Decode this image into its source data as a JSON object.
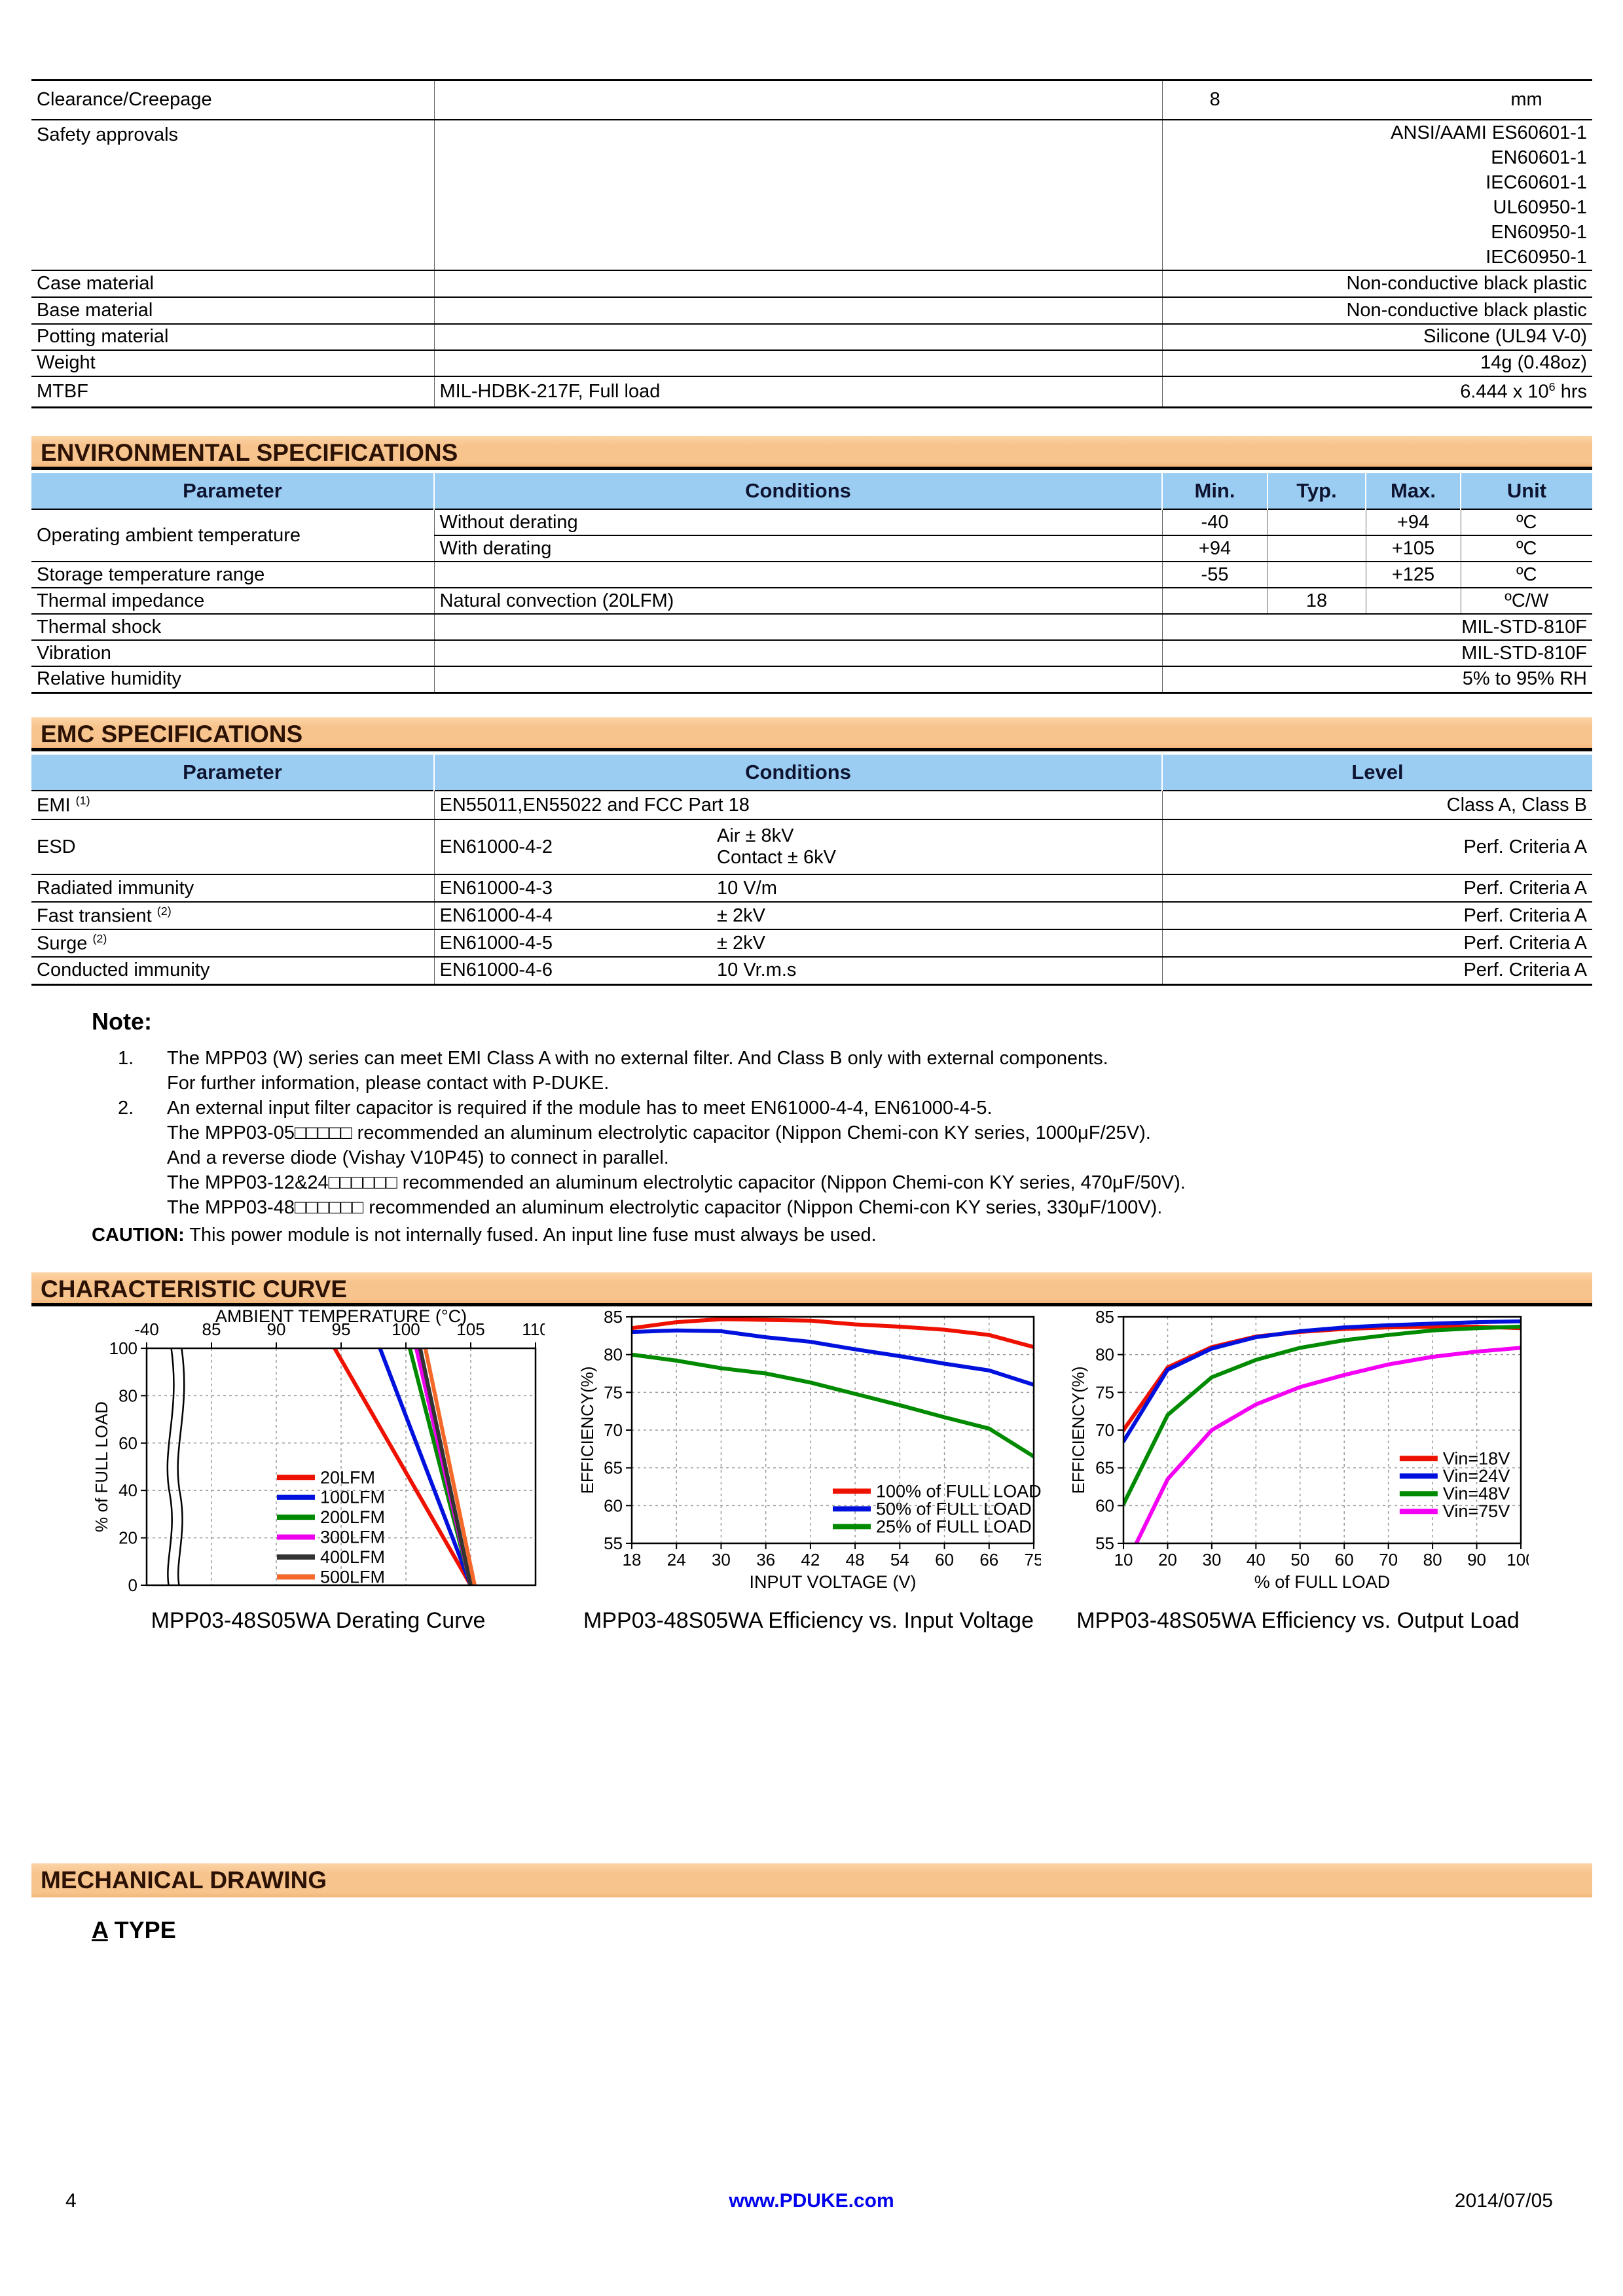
{
  "colors": {
    "banner_bg": "#F8C48E",
    "banner_text": "#2B1205",
    "header_bg": "#9BCDF3",
    "header_text": "#0E1430",
    "footer_link": "#0000EE"
  },
  "top_table": {
    "rows": [
      {
        "param": "Clearance/Creepage",
        "cond": "",
        "min": "8",
        "unit": "mm"
      },
      {
        "param": "Safety approvals",
        "values": [
          "ANSI/AAMI ES60601-1",
          "EN60601-1",
          "IEC60601-1",
          "UL60950-1",
          "EN60950-1",
          "IEC60950-1"
        ]
      },
      {
        "param": "Case material",
        "value": "Non-conductive black plastic"
      },
      {
        "param": "Base material",
        "value": "Non-conductive black plastic"
      },
      {
        "param": "Potting material",
        "value": "Silicone (UL94 V-0)"
      },
      {
        "param": "Weight",
        "value": "14g (0.48oz)"
      },
      {
        "param": "MTBF",
        "cond": "MIL-HDBK-217F, Full load",
        "value_main": "6.444 x 10",
        "value_sup": "6",
        "value_suffix": " hrs"
      }
    ]
  },
  "env": {
    "title": "ENVIRONMENTAL SPECIFICATIONS",
    "headers": [
      "Parameter",
      "Conditions",
      "Min.",
      "Typ.",
      "Max.",
      "Unit"
    ],
    "rows": [
      {
        "param": "Operating ambient temperature",
        "cond": "Without derating",
        "min": "-40",
        "typ": "",
        "max": "+94",
        "unit": "ºC"
      },
      {
        "cond": "With derating",
        "min": "+94",
        "typ": "",
        "max": "+105",
        "unit": "ºC"
      },
      {
        "param": "Storage temperature range",
        "cond": "",
        "min": "-55",
        "typ": "",
        "max": "+125",
        "unit": "ºC"
      },
      {
        "param": "Thermal impedance",
        "cond": "Natural convection (20LFM)",
        "min": "",
        "typ": "18",
        "max": "",
        "unit": "ºC/W"
      },
      {
        "param": "Thermal shock",
        "span_value": "MIL-STD-810F"
      },
      {
        "param": "Vibration",
        "span_value": "MIL-STD-810F"
      },
      {
        "param": "Relative humidity",
        "span_value": "5% to 95% RH"
      }
    ]
  },
  "emc": {
    "title": "EMC SPECIFICATIONS",
    "headers": [
      "Parameter",
      "Conditions",
      "Level"
    ],
    "rows": [
      {
        "param": "EMI",
        "sup": "(1)",
        "std": "EN55011,EN55022 and FCC Part 18",
        "val": "",
        "level": "Class A, Class B"
      },
      {
        "param": "ESD",
        "sup": "",
        "std": "EN61000-4-2",
        "val_lines": [
          "Air ± 8kV",
          "Contact ± 6kV"
        ],
        "level": "Perf. Criteria A"
      },
      {
        "param": "Radiated immunity",
        "sup": "",
        "std": "EN61000-4-3",
        "val": "10 V/m",
        "level": "Perf. Criteria A"
      },
      {
        "param": "Fast transient",
        "sup": "(2)",
        "std": "EN61000-4-4",
        "val": "± 2kV",
        "level": "Perf. Criteria A"
      },
      {
        "param": "Surge",
        "sup": "(2)",
        "std": "EN61000-4-5",
        "val": "± 2kV",
        "level": "Perf. Criteria A"
      },
      {
        "param": "Conducted immunity",
        "sup": "",
        "std": "EN61000-4-6",
        "val": "10 Vr.m.s",
        "level": "Perf. Criteria A"
      }
    ]
  },
  "note": {
    "heading": "Note:",
    "items": [
      {
        "num": "1.",
        "lines": [
          "The MPP03 (W) series can meet EMI Class A with no external filter. And Class B only with external components.",
          "For further information, please contact with P-DUKE."
        ]
      },
      {
        "num": "2.",
        "lines": [
          "An external input filter capacitor is required if the module has to meet EN61000-4-4, EN61000-4-5.",
          "The MPP03-05□□□□□ recommended an aluminum electrolytic capacitor (Nippon Chemi-con KY series, 1000μF/25V).",
          "And a reverse diode (Vishay V10P45) to connect in parallel.",
          "The MPP03-12&24□□□□□□ recommended an aluminum electrolytic capacitor (Nippon Chemi-con KY series, 470μF/50V).",
          "The MPP03-48□□□□□□ recommended an aluminum electrolytic capacitor (Nippon Chemi-con KY series, 330μF/100V)."
        ]
      }
    ],
    "caution_label": "CAUTION:",
    "caution_text": " This power module is not internally fused. An input line fuse must always be used."
  },
  "curve_section": {
    "title": "CHARACTERISTIC CURVE"
  },
  "mech": {
    "title": "MECHANICAL DRAWING",
    "type_letter": "A",
    "type_rest": " TYPE"
  },
  "footer": {
    "page": "4",
    "site": "www.PDUKE.com",
    "date": "2014/07/05"
  },
  "chart_data": [
    {
      "type": "line",
      "title": "MPP03-48S05WA Derating Curve",
      "xlabel": "AMBIENT TEMPERATURE (°C)",
      "ylabel": "% of FULL LOAD",
      "x_axis_side": "top",
      "x_ticks": [
        -40,
        85,
        90,
        95,
        100,
        105,
        110
      ],
      "x_break_after_first_tick": true,
      "y_ticks": [
        0,
        20,
        40,
        60,
        80,
        100
      ],
      "ylim": [
        0,
        100
      ],
      "grid": true,
      "legend_pos": "center-left-lower",
      "series": [
        {
          "name": "20LFM",
          "color": "#EE1100",
          "points": [
            [
              94.5,
              100
            ],
            [
              105,
              0
            ]
          ]
        },
        {
          "name": "100LFM",
          "color": "#0011DD",
          "points": [
            [
              98,
              100
            ],
            [
              105,
              0
            ]
          ]
        },
        {
          "name": "200LFM",
          "color": "#008A00",
          "points": [
            [
              100.3,
              100
            ],
            [
              105,
              0
            ]
          ]
        },
        {
          "name": "300LFM",
          "color": "#EE00EE",
          "points": [
            [
              100.8,
              100
            ],
            [
              105,
              0
            ]
          ]
        },
        {
          "name": "400LFM",
          "color": "#333333",
          "points": [
            [
              101.1,
              100
            ],
            [
              105,
              0
            ]
          ]
        },
        {
          "name": "500LFM",
          "color": "#F4692A",
          "points": [
            [
              101.5,
              100
            ],
            [
              105.3,
              0
            ]
          ]
        }
      ]
    },
    {
      "type": "line",
      "title": "MPP03-48S05WA Efficiency vs. Input Voltage",
      "xlabel": "INPUT VOLTAGE (V)",
      "ylabel": "EFFICIENCY(%)",
      "x_axis_side": "bottom",
      "x_ticks": [
        18,
        24,
        30,
        36,
        42,
        48,
        54,
        60,
        66,
        75
      ],
      "y_ticks": [
        55,
        60,
        65,
        70,
        75,
        80,
        85
      ],
      "ylim": [
        55,
        85
      ],
      "grid": true,
      "legend_pos": "bottom-right",
      "series": [
        {
          "name": "100% of FULL LOAD",
          "color": "#EE1100",
          "points": [
            [
              18,
              83.5
            ],
            [
              24,
              84.3
            ],
            [
              30,
              84.7
            ],
            [
              36,
              84.6
            ],
            [
              42,
              84.5
            ],
            [
              48,
              84.0
            ],
            [
              54,
              83.7
            ],
            [
              60,
              83.3
            ],
            [
              66,
              82.6
            ],
            [
              75,
              81.0
            ]
          ]
        },
        {
          "name": "50% of FULL LOAD",
          "color": "#0011DD",
          "points": [
            [
              18,
              83.0
            ],
            [
              24,
              83.2
            ],
            [
              30,
              83.1
            ],
            [
              36,
              82.3
            ],
            [
              42,
              81.7
            ],
            [
              48,
              80.7
            ],
            [
              54,
              79.8
            ],
            [
              60,
              78.8
            ],
            [
              66,
              77.9
            ],
            [
              75,
              76.0
            ]
          ]
        },
        {
          "name": "25% of FULL LOAD",
          "color": "#008A00",
          "points": [
            [
              18,
              80.0
            ],
            [
              24,
              79.2
            ],
            [
              30,
              78.2
            ],
            [
              36,
              77.5
            ],
            [
              42,
              76.3
            ],
            [
              48,
              74.8
            ],
            [
              54,
              73.3
            ],
            [
              60,
              71.7
            ],
            [
              66,
              70.2
            ],
            [
              75,
              66.5
            ]
          ]
        }
      ]
    },
    {
      "type": "line",
      "title": "MPP03-48S05WA Efficiency vs. Output Load",
      "xlabel": "% of FULL LOAD",
      "ylabel": "EFFICIENCY(%)",
      "x_axis_side": "bottom",
      "x_ticks": [
        10,
        20,
        30,
        40,
        50,
        60,
        70,
        80,
        90,
        100
      ],
      "y_ticks": [
        55,
        60,
        65,
        70,
        75,
        80,
        85
      ],
      "ylim": [
        55,
        85
      ],
      "grid": true,
      "legend_pos": "right-lower",
      "series": [
        {
          "name": "Vin=18V",
          "color": "#EE1100",
          "points": [
            [
              10,
              70.0
            ],
            [
              20,
              78.3
            ],
            [
              30,
              81.0
            ],
            [
              40,
              82.4
            ],
            [
              50,
              83.0
            ],
            [
              60,
              83.4
            ],
            [
              70,
              83.6
            ],
            [
              80,
              83.7
            ],
            [
              90,
              83.7
            ],
            [
              100,
              83.5
            ]
          ]
        },
        {
          "name": "Vin=24V",
          "color": "#0011DD",
          "points": [
            [
              10,
              68.5
            ],
            [
              20,
              78.0
            ],
            [
              30,
              80.8
            ],
            [
              40,
              82.3
            ],
            [
              50,
              83.1
            ],
            [
              60,
              83.6
            ],
            [
              70,
              83.9
            ],
            [
              80,
              84.1
            ],
            [
              90,
              84.3
            ],
            [
              100,
              84.4
            ]
          ]
        },
        {
          "name": "Vin=48V",
          "color": "#008A00",
          "points": [
            [
              10,
              60.2
            ],
            [
              20,
              72.0
            ],
            [
              30,
              77.0
            ],
            [
              40,
              79.3
            ],
            [
              50,
              80.9
            ],
            [
              60,
              81.9
            ],
            [
              70,
              82.6
            ],
            [
              80,
              83.2
            ],
            [
              90,
              83.5
            ],
            [
              100,
              83.7
            ]
          ]
        },
        {
          "name": "Vin=75V",
          "color": "#F400F4",
          "points": [
            [
              10,
              51.5
            ],
            [
              20,
              63.5
            ],
            [
              30,
              70.0
            ],
            [
              40,
              73.4
            ],
            [
              50,
              75.7
            ],
            [
              60,
              77.3
            ],
            [
              70,
              78.7
            ],
            [
              80,
              79.7
            ],
            [
              90,
              80.4
            ],
            [
              100,
              80.9
            ]
          ]
        }
      ]
    }
  ]
}
